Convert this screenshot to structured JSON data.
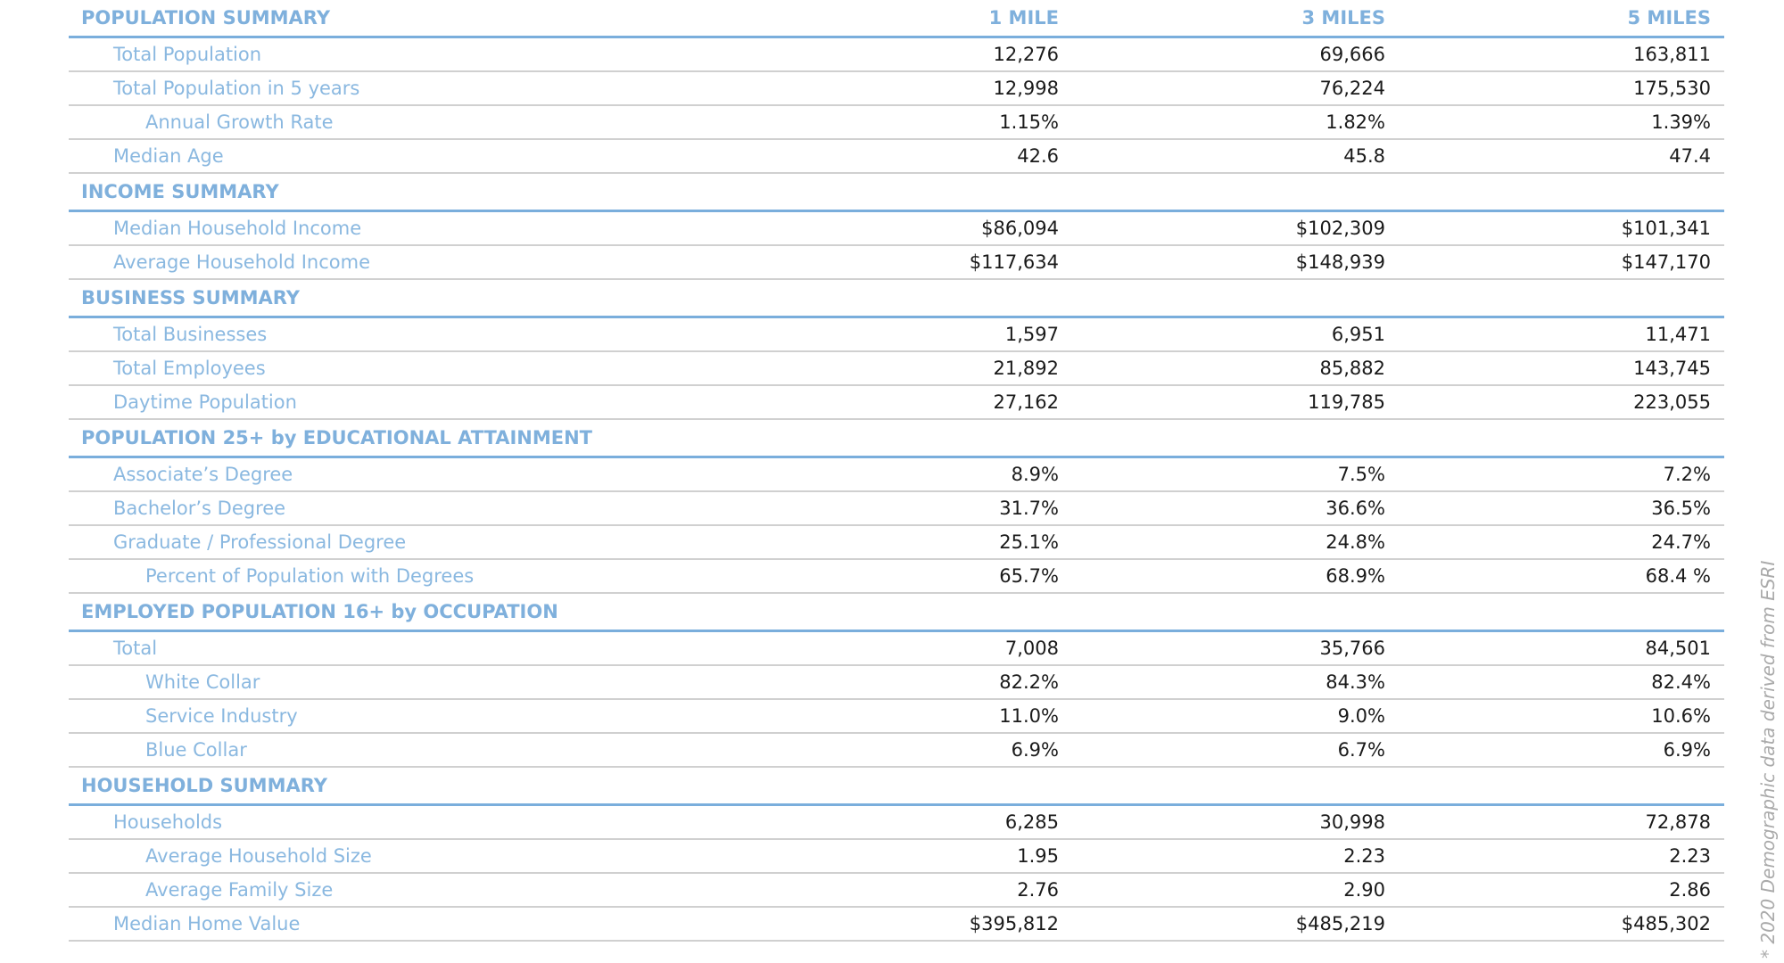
{
  "column_headers": [
    "1 MILE",
    "3 MILES",
    "5 MILES"
  ],
  "sections": [
    {
      "title": "POPULATION SUMMARY",
      "rows": [
        {
          "label": "Total Population",
          "values": [
            "12,276",
            "69,666",
            "163,811"
          ]
        },
        {
          "label": "Total Population in 5 years",
          "values": [
            "12,998",
            "76,224",
            "175,530"
          ],
          "children": [
            {
              "label": "Annual Growth Rate",
              "values": [
                "1.15%",
                "1.82%",
                "1.39%"
              ]
            }
          ]
        },
        {
          "label": "Median Age",
          "values": [
            "42.6",
            "45.8",
            "47.4"
          ]
        }
      ]
    },
    {
      "title": "INCOME SUMMARY",
      "rows": [
        {
          "label": "Median Household Income",
          "values": [
            "$86,094",
            "$102,309",
            "$101,341"
          ]
        },
        {
          "label": "Average Household Income",
          "values": [
            "$117,634",
            "$148,939",
            "$147,170"
          ]
        }
      ]
    },
    {
      "title": "BUSINESS SUMMARY",
      "rows": [
        {
          "label": "Total Businesses",
          "values": [
            "1,597",
            "6,951",
            "11,471"
          ]
        },
        {
          "label": "Total Employees",
          "values": [
            "21,892",
            "85,882",
            "143,745"
          ]
        },
        {
          "label": "Daytime Population",
          "values": [
            "27,162",
            "119,785",
            "223,055"
          ]
        }
      ]
    },
    {
      "title": "POPULATION 25+ by EDUCATIONAL ATTAINMENT",
      "rows": [
        {
          "label": "Associate’s Degree",
          "values": [
            "8.9%",
            "7.5%",
            "7.2%"
          ]
        },
        {
          "label": "Bachelor’s Degree",
          "values": [
            "31.7%",
            "36.6%",
            "36.5%"
          ]
        },
        {
          "label": "Graduate / Professional Degree",
          "values": [
            "25.1%",
            "24.8%",
            "24.7%"
          ],
          "children": [
            {
              "label": "Percent of Population with Degrees",
              "values": [
                "65.7%",
                "68.9%",
                "68.4 %"
              ]
            }
          ]
        }
      ]
    },
    {
      "title": "EMPLOYED POPULATION 16+ by OCCUPATION",
      "rows": [
        {
          "label": "Total",
          "values": [
            "7,008",
            "35,766",
            "84,501"
          ],
          "children": [
            {
              "label": "White Collar",
              "values": [
                "82.2%",
                "84.3%",
                "82.4%"
              ]
            },
            {
              "label": "Service Industry",
              "values": [
                "11.0%",
                "9.0%",
                "10.6%"
              ]
            },
            {
              "label": "Blue Collar",
              "values": [
                "6.9%",
                "6.7%",
                "6.9%"
              ]
            }
          ]
        }
      ]
    },
    {
      "title": "HOUSEHOLD SUMMARY",
      "rows": [
        {
          "label": "Households",
          "values": [
            "6,285",
            "30,998",
            "72,878"
          ],
          "children": [
            {
              "label": "Average Household Size",
              "values": [
                "1.95",
                "2.23",
                "2.23"
              ]
            },
            {
              "label": "Average Family Size",
              "values": [
                "2.76",
                "2.90",
                "2.86"
              ]
            }
          ]
        },
        {
          "label": "Median Home Value",
          "values": [
            "$395,812",
            "$485,219",
            "$485,302"
          ]
        }
      ]
    }
  ],
  "footnote": "* 2020 Demographic data derived from ESRI"
}
